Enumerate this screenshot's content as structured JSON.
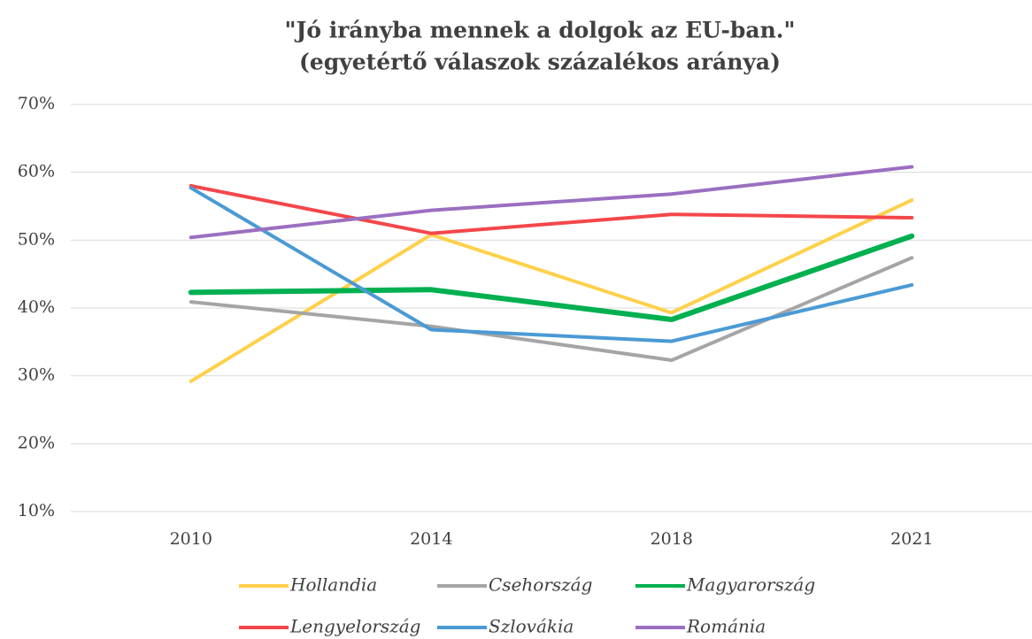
{
  "chart_data": {
    "type": "line",
    "title": "\"Jó irányba mennek a dolgok az EU-ban.\"",
    "subtitle": "(egyetértő válaszok százalékos aránya)",
    "categories": [
      "2010",
      "2014",
      "2018",
      "2021"
    ],
    "series": [
      {
        "name": "Hollandia",
        "color": "#ffd04a",
        "values": [
          29.2,
          50.8,
          39.3,
          55.9
        ]
      },
      {
        "name": "Csehország",
        "color": "#a5a5a5",
        "values": [
          40.9,
          37.3,
          32.3,
          47.4
        ]
      },
      {
        "name": "Magyarország",
        "color": "#00b050",
        "values": [
          42.3,
          42.7,
          38.3,
          50.6
        ]
      },
      {
        "name": "Lengyelország",
        "color": "#f4474a",
        "values": [
          58.0,
          51.0,
          53.8,
          53.3
        ]
      },
      {
        "name": "Szlovákia",
        "color": "#4a9ad4",
        "values": [
          57.7,
          36.8,
          35.1,
          43.4
        ]
      },
      {
        "name": "Románia",
        "color": "#9b6fc0",
        "values": [
          50.4,
          54.4,
          56.8,
          60.8
        ]
      }
    ],
    "ylim": [
      10,
      70
    ],
    "yticks": [
      {
        "value": 10,
        "label": "10%"
      },
      {
        "value": 20,
        "label": "20%"
      },
      {
        "value": 30,
        "label": "30%"
      },
      {
        "value": 40,
        "label": "40%"
      },
      {
        "value": 50,
        "label": "50%"
      },
      {
        "value": 60,
        "label": "60%"
      },
      {
        "value": 70,
        "label": "70%"
      }
    ],
    "grid": true,
    "legend": "bottom"
  }
}
